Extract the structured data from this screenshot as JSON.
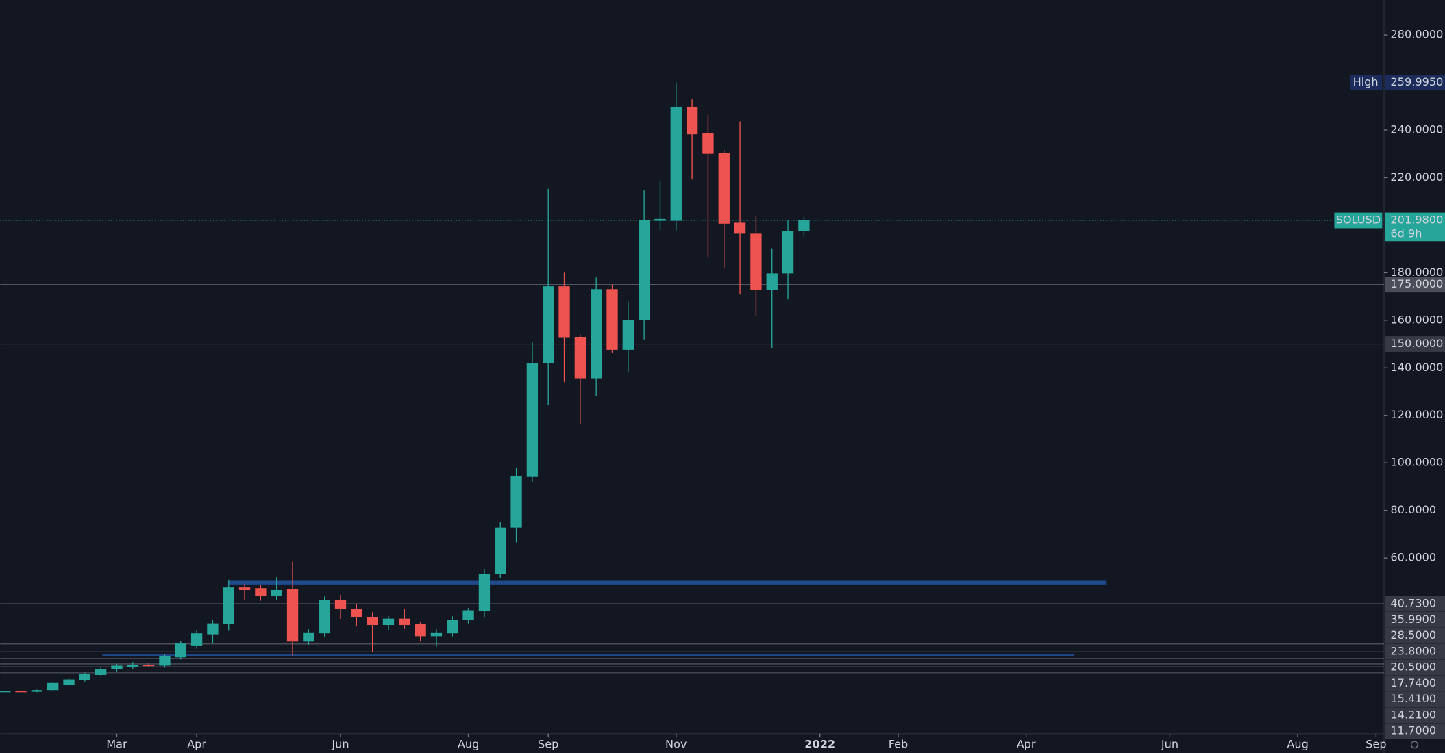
{
  "chart_data": {
    "type": "candlestick",
    "symbol": "SOLUSD",
    "countdown": "6d 9h",
    "high_label": "High",
    "high": {
      "value": 259.995,
      "label": "259.9950"
    },
    "last": {
      "value": 201.98,
      "label": "201.9800"
    },
    "up_color": "#26a69a",
    "down_color": "#ef5350",
    "ohlc": {
      "open": [
        3.8,
        3.9,
        3.7,
        4.4,
        6.6,
        8.5,
        10.8,
        13.2,
        14.0,
        15.0,
        14.7,
        18.2,
        23.2,
        27.9,
        32.1,
        47.6,
        47.3,
        44.2,
        46.9,
        24.8,
        28.3,
        42.2,
        38.7,
        35.2,
        31.8,
        34.5,
        32.1,
        27.1,
        28.3,
        34.1,
        37.6,
        53.4,
        72.8,
        94.1,
        141.8,
        174.3,
        153.0,
        135.6,
        173.1,
        147.6,
        160.0,
        201.8,
        201.8,
        249.8,
        238.6,
        230.4,
        201.0,
        196.4,
        172.7,
        179.7,
        197.5
      ],
      "high": [
        4.2,
        4.3,
        4.6,
        7.8,
        9.4,
        11.8,
        13.9,
        15.5,
        16.2,
        15.8,
        19.5,
        25.0,
        29.5,
        34.0,
        50.7,
        49.2,
        48.8,
        51.9,
        58.5,
        30.0,
        43.8,
        44.5,
        40.5,
        37.2,
        35.5,
        38.7,
        33.0,
        30.0,
        35.5,
        39.0,
        55.4,
        75.0,
        98.0,
        150.7,
        215.3,
        180.0,
        154.0,
        178.0,
        175.0,
        167.8,
        214.6,
        218.4,
        259.995,
        252.9,
        246.3,
        231.6,
        243.6,
        203.7,
        190.0,
        201.9,
        203.4
      ],
      "low": [
        3.5,
        3.5,
        3.5,
        4.2,
        6.2,
        8.0,
        10.2,
        12.3,
        13.4,
        13.9,
        13.8,
        17.3,
        21.9,
        24.0,
        29.4,
        42.2,
        42.0,
        42.2,
        19.0,
        23.5,
        27.0,
        34.4,
        31.5,
        20.5,
        29.8,
        30.2,
        24.8,
        22.7,
        27.0,
        32.5,
        35.0,
        51.5,
        66.5,
        92.0,
        124.3,
        134.0,
        116.2,
        128.0,
        146.3,
        138.0,
        152.0,
        197.9,
        197.9,
        219.2,
        186.3,
        181.9,
        170.8,
        161.7,
        148.3,
        168.8,
        195.2
      ],
      "close": [
        3.9,
        3.7,
        4.4,
        7.4,
        8.9,
        11.2,
        13.2,
        14.7,
        15.1,
        14.5,
        18.6,
        24.0,
        28.3,
        32.5,
        47.6,
        46.5,
        44.2,
        46.5,
        24.8,
        28.7,
        42.2,
        38.7,
        35.2,
        31.8,
        34.5,
        31.8,
        27.1,
        28.7,
        34.1,
        38.0,
        53.4,
        72.8,
        94.5,
        141.8,
        174.3,
        152.6,
        135.6,
        173.1,
        147.6,
        160.0,
        202.2,
        202.6,
        249.8,
        238.2,
        230.0,
        200.6,
        196.4,
        172.7,
        179.7,
        197.5,
        201.98
      ]
    },
    "xlim": [
      -0.3,
      86.3
    ],
    "xticks": [
      {
        "value": 7,
        "label": "Mar"
      },
      {
        "value": 12,
        "label": "Apr"
      },
      {
        "value": 21,
        "label": "Jun"
      },
      {
        "value": 29,
        "label": "Aug"
      },
      {
        "value": 34,
        "label": "Sep"
      },
      {
        "value": 42,
        "label": "Nov"
      },
      {
        "value": 51,
        "label": "2022"
      },
      {
        "value": 55.9,
        "label": "Feb"
      },
      {
        "value": 63.9,
        "label": "Apr"
      },
      {
        "value": 72.9,
        "label": "Jun"
      },
      {
        "value": 80.9,
        "label": "Aug"
      },
      {
        "value": 85.8,
        "label": "Sep"
      }
    ],
    "ylim": [
      -13.9,
      294.7
    ],
    "yticks": [
      {
        "value": 60,
        "label": "60.0000"
      },
      {
        "value": 80,
        "label": "80.0000"
      },
      {
        "value": 100,
        "label": "100.0000"
      },
      {
        "value": 120,
        "label": "120.0000"
      },
      {
        "value": 140,
        "label": "140.0000"
      },
      {
        "value": 160,
        "label": "160.0000"
      },
      {
        "value": 180,
        "label": "180.0000"
      },
      {
        "value": 220,
        "label": "220.0000"
      },
      {
        "value": 240,
        "label": "240.0000"
      },
      {
        "value": 280,
        "label": "280.0000"
      }
    ],
    "levels": [
      {
        "value": 175,
        "label": "175.0000"
      },
      {
        "value": 150,
        "label": "150.0000"
      },
      {
        "value": 40.73,
        "label": "40.7300"
      },
      {
        "value": 35.99,
        "label": "35.9900"
      },
      {
        "value": 28.5,
        "label": "28.5000"
      },
      {
        "value": 23.8,
        "label": "23.8000"
      },
      {
        "value": 20.5,
        "label": "20.5000"
      },
      {
        "value": 17.74,
        "label": "17.7400"
      },
      {
        "value": 15.41,
        "label": "15.4100"
      },
      {
        "value": 14.21,
        "label": "14.2100"
      },
      {
        "value": 11.7,
        "label": "11.7000"
      }
    ],
    "zones": [
      {
        "value": 49.6,
        "start": 14,
        "end": 68.9,
        "color": "#1f4a8c"
      },
      {
        "value": 19.0,
        "start": 6.1,
        "end": 66.9,
        "color": "#1f4a8c"
      }
    ]
  }
}
